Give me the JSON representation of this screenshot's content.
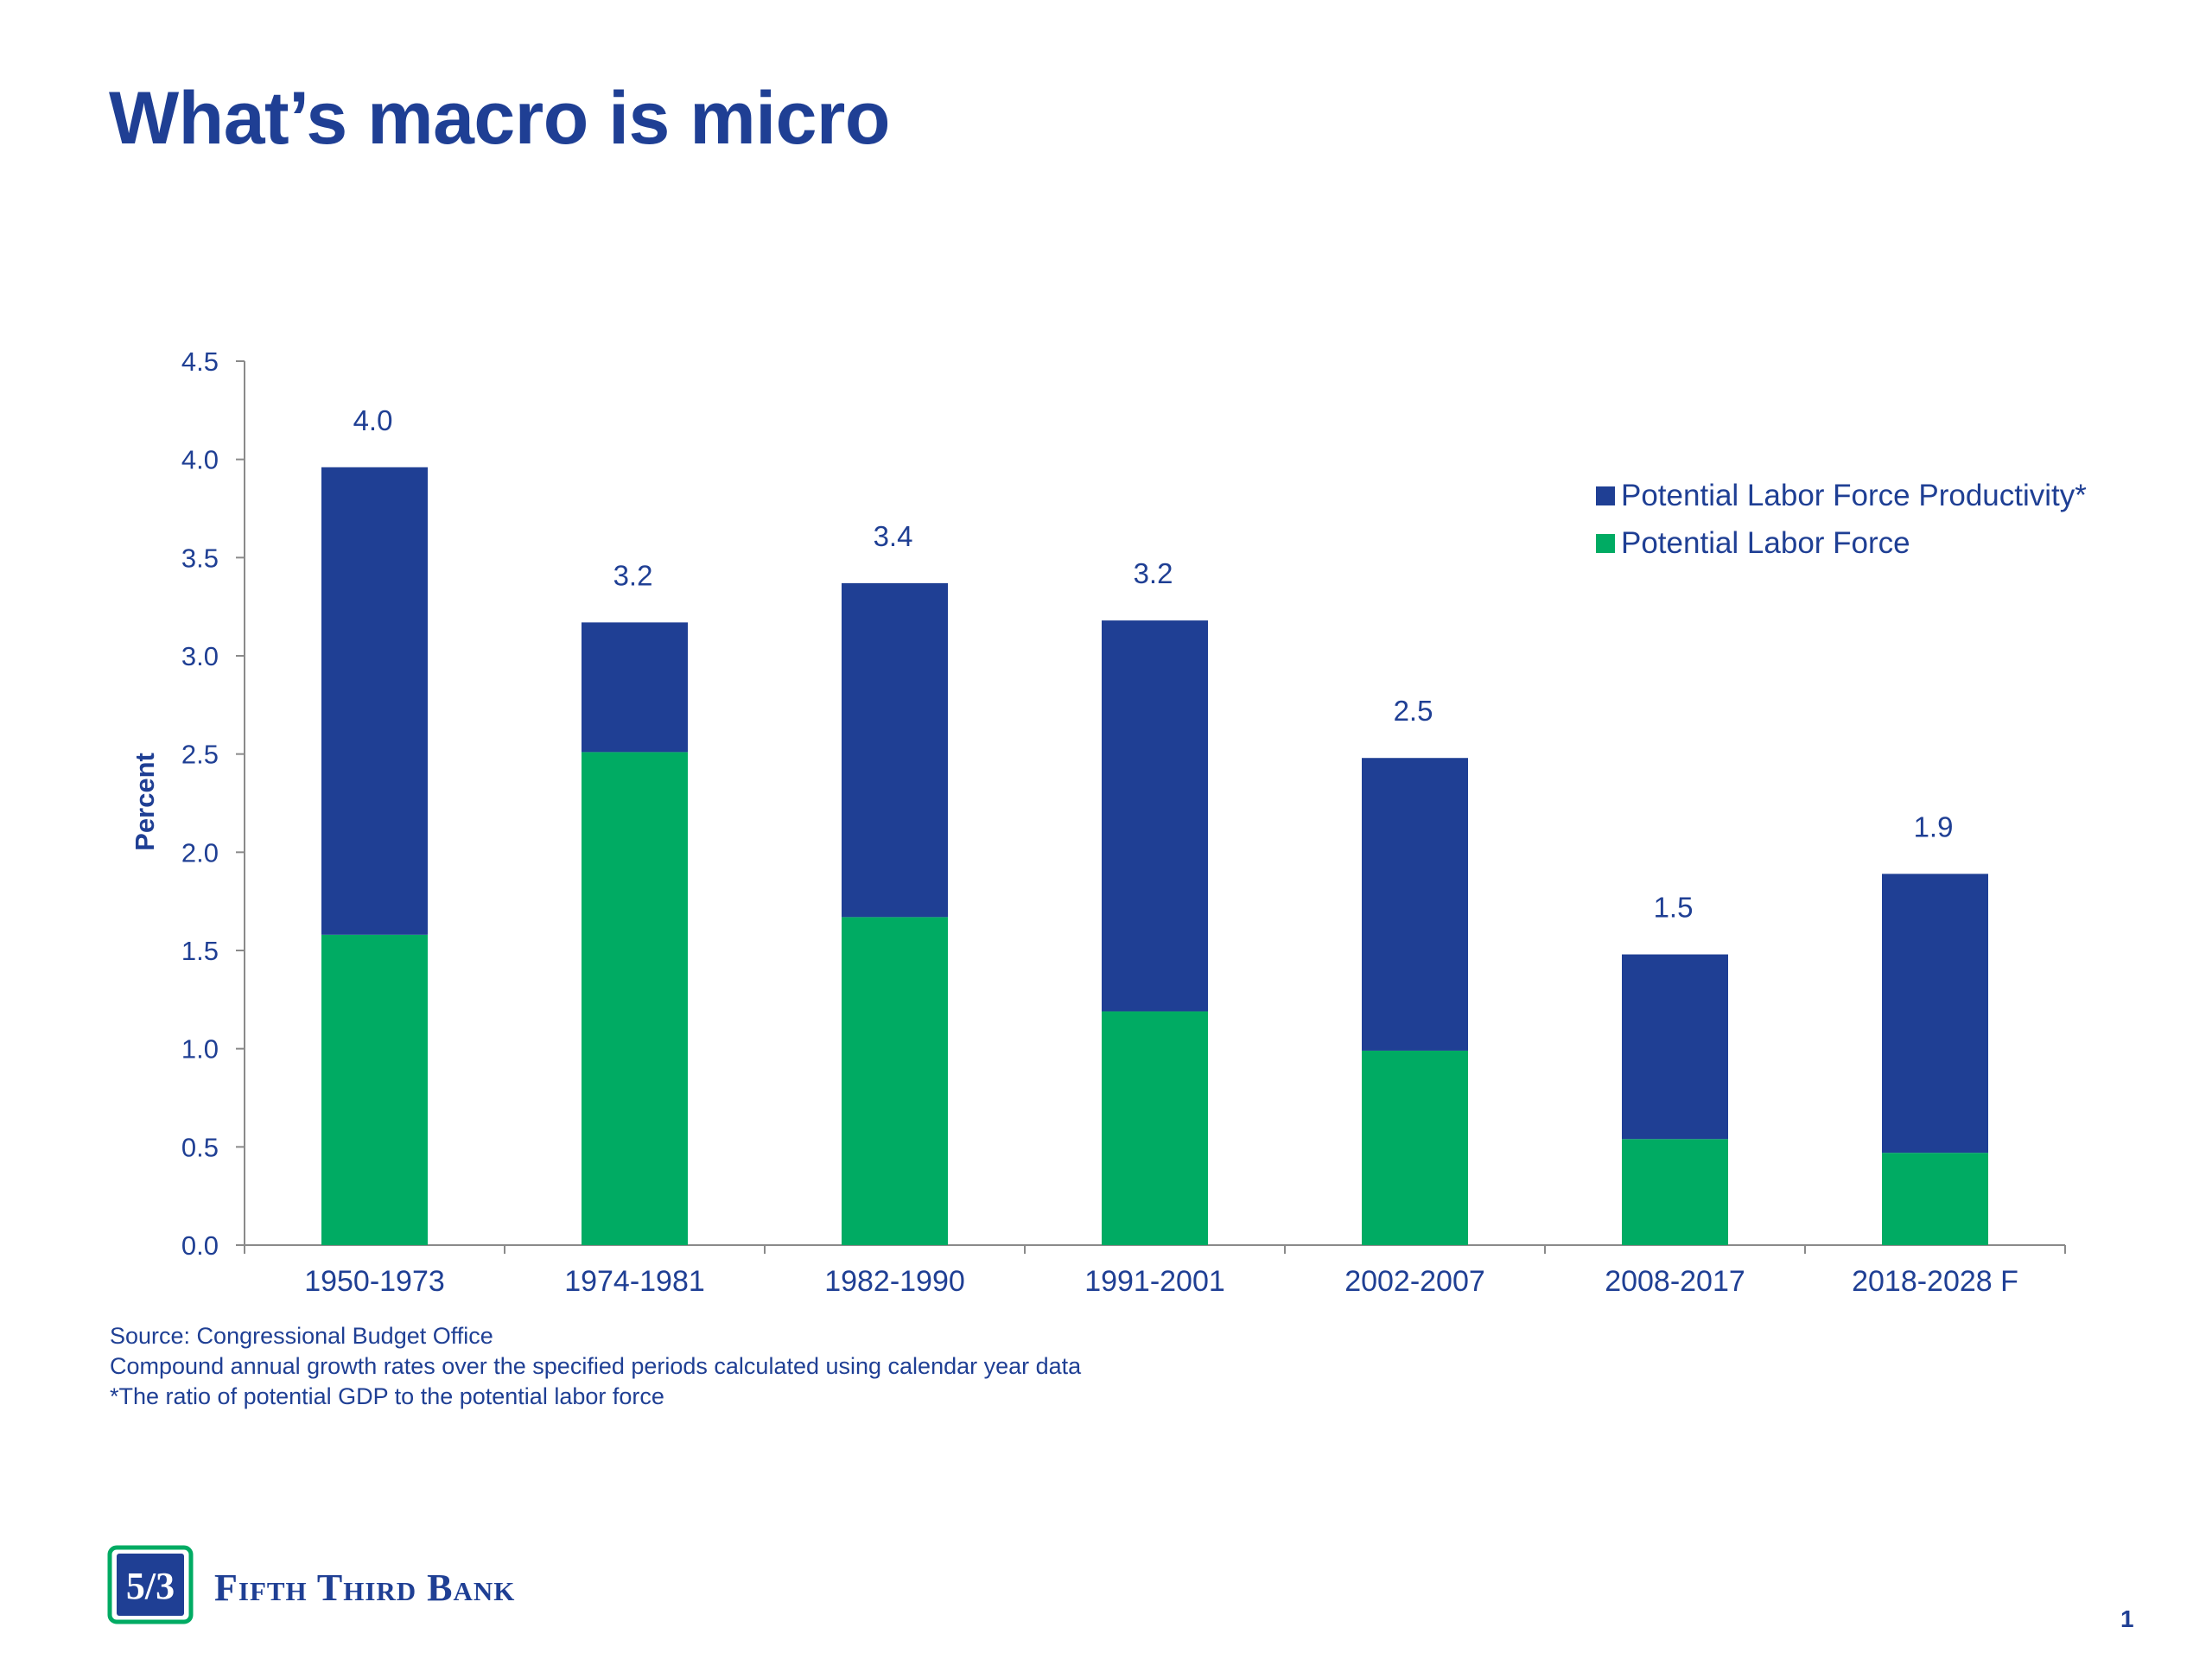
{
  "title": "What’s macro is micro",
  "chart_data": {
    "type": "bar",
    "stacked": true,
    "categories": [
      "1950-1973",
      "1974-1981",
      "1982-1990",
      "1991-2001",
      "2002-2007",
      "2008-2017",
      "2018-2028 F"
    ],
    "series": [
      {
        "name": "Potential Labor Force",
        "color": "#00ab63",
        "values": [
          1.58,
          2.51,
          1.67,
          1.19,
          0.99,
          0.54,
          0.47
        ]
      },
      {
        "name": "Potential Labor Force Productivity*",
        "color": "#1f3f94",
        "values": [
          2.38,
          0.66,
          1.7,
          1.99,
          1.49,
          0.94,
          1.42
        ]
      }
    ],
    "totals_labels": [
      "4.0",
      "3.2",
      "3.4",
      "3.2",
      "2.5",
      "1.5",
      "1.9"
    ],
    "ylabel": "Percent",
    "xlabel": "",
    "ylim": [
      0,
      4.5
    ],
    "yticks": [
      "0.0",
      "0.5",
      "1.0",
      "1.5",
      "2.0",
      "2.5",
      "3.0",
      "3.5",
      "4.0",
      "4.5"
    ],
    "legend_position": "top-right",
    "grid": false
  },
  "notes": {
    "source": "Source: Congressional Budget Office",
    "method": "Compound annual growth rates over the specified periods calculated using calendar year data",
    "footnote": "*The ratio of potential GDP to the potential labor force"
  },
  "logo": {
    "brand_name": "Fifth Third Bank",
    "mark_text": "5/3",
    "colors": {
      "blue": "#1f3f94",
      "green": "#00ab63"
    }
  },
  "page_number": "1"
}
